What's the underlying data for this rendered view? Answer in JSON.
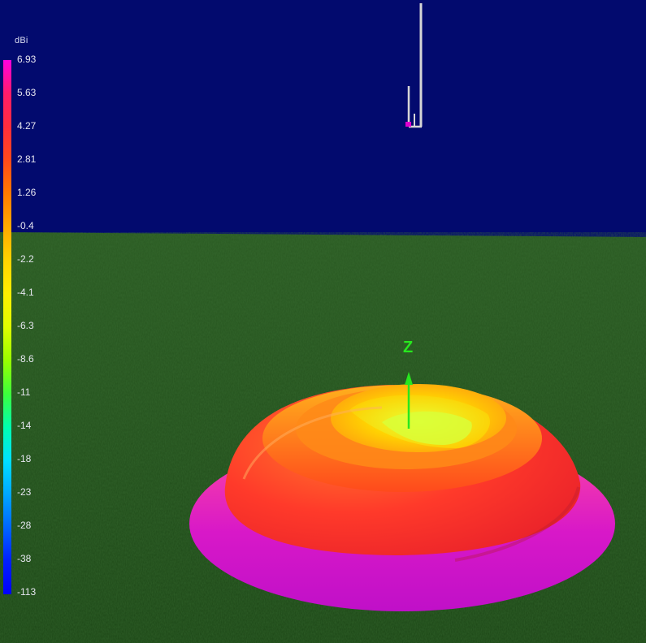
{
  "legend": {
    "unit": "dBi",
    "ticks": [
      "6.93",
      "5.63",
      "4.27",
      "2.81",
      "1.26",
      "-0.4",
      "-2.2",
      "-4.1",
      "-6.3",
      "-8.6",
      "-11",
      "-14",
      "-18",
      "-23",
      "-28",
      "-38",
      "-113"
    ],
    "colors": [
      "#ff00e0",
      "#ff1c6a",
      "#ff2d3c",
      "#ff4a1a",
      "#ff7a00",
      "#ffaa00",
      "#ffd400",
      "#fff000",
      "#dfff00",
      "#99ff00",
      "#3cff3c",
      "#00ffb0",
      "#00e0ff",
      "#00a8ff",
      "#0066ff",
      "#0020ff",
      "#0000ff"
    ]
  },
  "axis": {
    "z_label": "Z",
    "color": "#27e71e"
  },
  "scene": {
    "sky_color": "#020a6e",
    "ground_color": "#1f4f1a",
    "antenna_color": "#d6d6d6",
    "feed_color": "#e000d0"
  }
}
